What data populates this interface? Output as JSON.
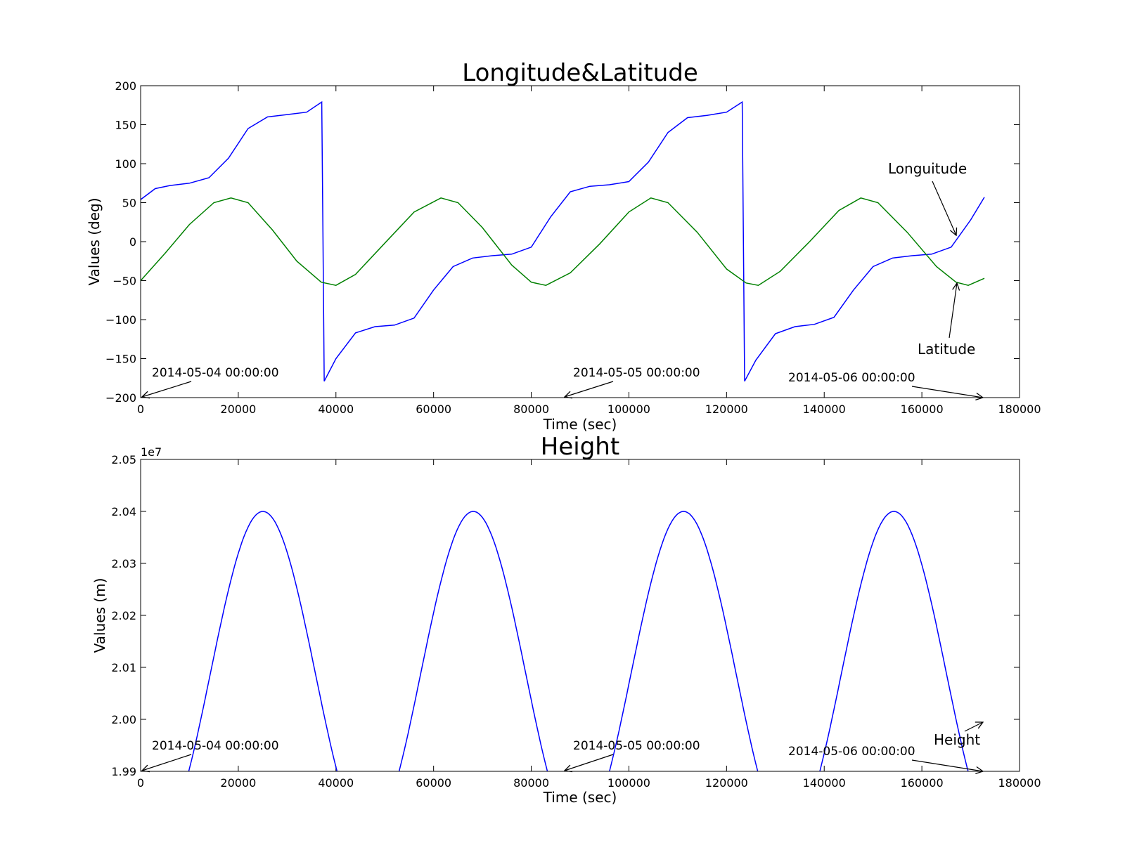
{
  "chart_data": [
    {
      "type": "line",
      "title": "Longitude&Latitude",
      "xlabel": "Time (sec)",
      "ylabel": "Values (deg)",
      "xlim": [
        0,
        180000
      ],
      "ylim": [
        -200,
        200
      ],
      "x_ticks": [
        "0",
        "20000",
        "40000",
        "60000",
        "80000",
        "100000",
        "120000",
        "140000",
        "160000",
        "180000"
      ],
      "y_ticks": [
        "200",
        "150",
        "100",
        "50",
        "0",
        "−50",
        "−100",
        "−150",
        "−200"
      ],
      "series": [
        {
          "color": "#0000ff",
          "x": [
            0,
            3000,
            6000,
            10000,
            14000,
            18000,
            22000,
            26000,
            30000,
            34000,
            37100,
            37350,
            37600,
            40000,
            44000,
            48000,
            52000,
            56000,
            60000,
            64000,
            68000,
            72000,
            76000,
            80000,
            84000,
            88000,
            92000,
            96000,
            100000,
            104000,
            108000,
            112000,
            116000,
            120000,
            123200,
            123450,
            123700,
            126000,
            130000,
            134000,
            138000,
            142000,
            146000,
            150000,
            154000,
            158000,
            162000,
            166000,
            170000,
            172800
          ],
          "y": [
            54,
            68,
            72,
            75,
            82,
            107,
            145,
            160,
            163,
            166,
            179,
            0,
            -179,
            -150,
            -117,
            -109,
            -107,
            -98,
            -62,
            -32,
            -21,
            -18,
            -16,
            -7,
            32,
            64,
            71,
            73,
            77,
            102,
            140,
            159,
            162,
            166,
            179,
            0,
            -179,
            -152,
            -118,
            -109,
            -106,
            -97,
            -62,
            -32,
            -21,
            -18,
            -16,
            -7,
            28,
            57
          ]
        },
        {
          "color": "#008000",
          "x": [
            0,
            5000,
            10000,
            15000,
            18500,
            22000,
            27000,
            32000,
            37000,
            40000,
            44000,
            50000,
            56000,
            61500,
            65000,
            70000,
            76000,
            80000,
            83000,
            88000,
            94000,
            100000,
            104500,
            108000,
            114000,
            120000,
            124000,
            126500,
            131000,
            137000,
            143000,
            147500,
            151000,
            157000,
            163000,
            167000,
            169500,
            172800
          ],
          "y": [
            -50,
            -15,
            22,
            50,
            56,
            50,
            15,
            -25,
            -52,
            -56,
            -42,
            -2,
            38,
            56,
            50,
            18,
            -30,
            -52,
            -56,
            -40,
            -3,
            38,
            56,
            50,
            12,
            -35,
            -53,
            -56,
            -38,
            0,
            40,
            56,
            50,
            12,
            -32,
            -52,
            -56,
            -47
          ]
        }
      ],
      "annotations": [
        {
          "text": "Longuitude",
          "x": 167000,
          "y": 5
        },
        {
          "text": "Latitude",
          "x": 167000,
          "y": -52
        },
        {
          "text": "2014-05-04 00:00:00",
          "x": 0,
          "y": -200
        },
        {
          "text": "2014-05-05 00:00:00",
          "x": 86400,
          "y": -200
        },
        {
          "text": "2014-05-06 00:00:00",
          "x": 172800,
          "y": -200
        }
      ]
    },
    {
      "type": "line",
      "title": "Height",
      "xlabel": "Time (sec)",
      "ylabel": "Values (m)",
      "offset_label": "1e7",
      "xlim": [
        0,
        180000
      ],
      "ylim": [
        1.99,
        2.05
      ],
      "x_ticks": [
        "0",
        "20000",
        "40000",
        "60000",
        "80000",
        "100000",
        "120000",
        "140000",
        "160000",
        "180000"
      ],
      "y_ticks": [
        "2.05",
        "2.04",
        "2.03",
        "2.02",
        "2.01",
        "2.00",
        "1.99"
      ],
      "series": [
        {
          "color": "#0000ff",
          "function": "sinusoid",
          "mean": 2.00875,
          "amplitude": 0.03125,
          "period_sec": 43080,
          "minimum_at_sec": 3500,
          "x_range": [
            0,
            172800
          ]
        }
      ],
      "annotations": [
        {
          "text": "Height",
          "x": 172800,
          "y": 1.9996
        },
        {
          "text": "2014-05-04 00:00:00",
          "x": 0,
          "y": 1.99
        },
        {
          "text": "2014-05-05 00:00:00",
          "x": 86400,
          "y": 1.99
        },
        {
          "text": "2014-05-06 00:00:00",
          "x": 172800,
          "y": 1.99
        }
      ]
    }
  ]
}
